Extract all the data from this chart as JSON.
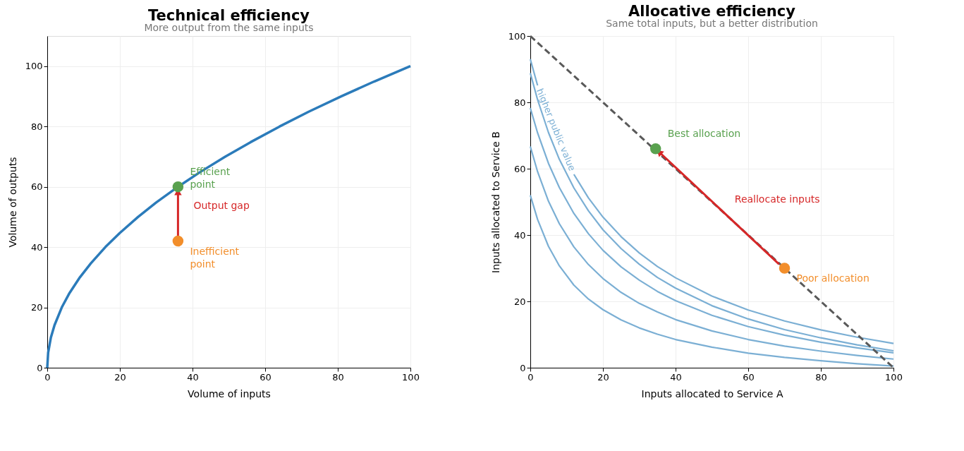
{
  "chart_data": [
    {
      "type": "line",
      "title": "Technical efficiency",
      "subtitle": "More output from the same inputs",
      "xlabel": "Volume of inputs",
      "ylabel": "Volume of outputs",
      "xlim": [
        0,
        100
      ],
      "ylim": [
        0,
        110
      ],
      "xticks": [
        0,
        20,
        40,
        60,
        80,
        100
      ],
      "yticks": [
        0,
        20,
        40,
        60,
        80,
        100
      ],
      "grid": true,
      "series": [
        {
          "color": "#2b7bba",
          "x": [
            0,
            0.25,
            1,
            2,
            4,
            6,
            9,
            12,
            16,
            20,
            25,
            30,
            36,
            42,
            49,
            56,
            64,
            72,
            81,
            90,
            100
          ],
          "values": [
            0,
            5,
            10,
            14.1,
            20,
            24.5,
            30,
            34.6,
            40,
            44.7,
            50,
            54.8,
            60,
            64.8,
            70,
            74.8,
            80,
            84.9,
            90,
            94.9,
            100
          ]
        },
        {
          "color": "#d62728",
          "marker": "triangle",
          "x": [
            36,
            36
          ],
          "values": [
            43.5,
            58.3
          ]
        },
        {
          "type": "scatter",
          "color": "#59a14f",
          "x": [
            36
          ],
          "values": [
            60
          ]
        },
        {
          "type": "scatter",
          "color": "#f28e2b",
          "x": [
            36
          ],
          "values": [
            42
          ]
        }
      ],
      "annotations": [
        {
          "text": "Efficient\npoint",
          "x": 36,
          "y": 60
        },
        "Output gap",
        {
          "text": "Inefficient\npoint",
          "x": 36,
          "y": 42
        }
      ]
    },
    {
      "type": "line",
      "title": "Allocative efficiency",
      "subtitle": "Same total inputs, but a better distribution",
      "xlabel": "Inputs allocated to Service A",
      "ylabel": "Inputs allocated to Service B",
      "xlim": [
        0,
        100
      ],
      "ylim": [
        0,
        100
      ],
      "xticks": [
        0,
        20,
        40,
        60,
        80,
        100
      ],
      "yticks": [
        0,
        20,
        40,
        60,
        80,
        100
      ],
      "grid": true,
      "series": [
        {
          "type": "line",
          "color": "#7bafd4",
          "x": [
            0,
            2,
            5,
            8,
            12,
            16,
            20,
            25,
            30,
            35,
            40,
            50,
            60,
            70,
            80,
            90,
            100
          ],
          "values": [
            93.0,
            85.1,
            null,
            null,
            58.3,
            51.2,
            45.4,
            39.5,
            34.6,
            30.5,
            27.1,
            21.6,
            17.4,
            14.1,
            11.4,
            9.2,
            7.3
          ]
        },
        {
          "type": "line",
          "color": "#7bafd4",
          "x": [
            0,
            2,
            5,
            8,
            12,
            16,
            20,
            25,
            30,
            35,
            40,
            50,
            60,
            70,
            80,
            90,
            100
          ],
          "values": [
            88.8,
            80.8,
            70.9,
            62.8,
            54.2,
            47.3,
            41.6,
            35.9,
            31.2,
            27.2,
            24.0,
            18.7,
            14.7,
            11.5,
            9.0,
            6.9,
            5.1
          ]
        },
        {
          "type": "line",
          "color": "#7bafd4",
          "x": [
            0,
            2,
            5,
            8,
            12,
            16,
            20,
            25,
            30,
            35,
            40,
            50,
            60,
            70,
            80,
            90,
            100
          ],
          "values": [
            78.3,
            70.8,
            61.6,
            54.3,
            46.5,
            40.4,
            35.4,
            30.4,
            26.4,
            23.0,
            20.2,
            15.8,
            12.4,
            9.8,
            7.7,
            6.0,
            4.5
          ]
        },
        {
          "type": "line",
          "color": "#7bafd4",
          "x": [
            0,
            2,
            5,
            8,
            12,
            16,
            20,
            25,
            30,
            35,
            40,
            50,
            60,
            70,
            80,
            90,
            100
          ],
          "values": [
            66.7,
            59.1,
            50.2,
            43.4,
            36.4,
            31.1,
            26.9,
            22.7,
            19.4,
            16.8,
            14.5,
            11.1,
            8.5,
            6.5,
            5.0,
            3.7,
            2.6
          ]
        },
        {
          "type": "line",
          "color": "#7bafd4",
          "x": [
            0,
            2,
            5,
            8,
            12,
            16,
            20,
            25,
            30,
            35,
            40,
            50,
            60,
            70,
            80,
            90,
            100
          ],
          "values": [
            52.0,
            44.7,
            36.6,
            30.7,
            24.9,
            20.7,
            17.5,
            14.4,
            12.0,
            10.1,
            8.5,
            6.2,
            4.4,
            3.1,
            2.1,
            1.2,
            0.5
          ]
        },
        {
          "type": "line",
          "color": "#595959",
          "line_style": "dashed",
          "x": [
            0,
            100
          ],
          "values": [
            100,
            0
          ]
        },
        {
          "type": "line",
          "color": "#d62728",
          "marker": "triangle",
          "x": [
            68.5,
            35.5
          ],
          "values": [
            31.2,
            65
          ]
        },
        {
          "type": "scatter",
          "color": "#59a14f",
          "x": [
            34.5
          ],
          "values": [
            66
          ]
        },
        {
          "type": "scatter",
          "color": "#f28e2b",
          "x": [
            70
          ],
          "values": [
            30
          ]
        }
      ],
      "annotations": [
        "Reallocate inputs",
        {
          "text": "Best allocation",
          "x": 34.5,
          "y": 66
        },
        "higher public value",
        {
          "text": "Poor allocation",
          "x": 70,
          "y": 30
        }
      ]
    }
  ]
}
